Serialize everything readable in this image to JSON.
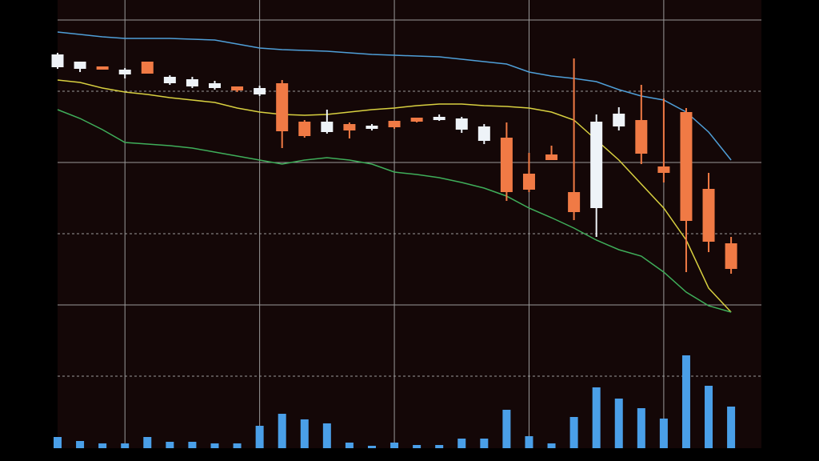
{
  "chart_data": {
    "type": "candlestick",
    "categories": [
      null,
      null,
      null,
      null,
      null,
      null,
      null,
      null,
      null,
      null,
      null,
      null,
      null,
      null,
      null,
      null,
      null,
      null,
      null,
      null,
      null,
      null,
      null,
      null,
      null,
      null,
      null,
      null,
      null,
      null,
      null
    ],
    "open": [
      95.2,
      94.8,
      95.4,
      93.4,
      96.6,
      91.2,
      90.4,
      90,
      90.4,
      88.4,
      91.2,
      81.6,
      79,
      81,
      79.8,
      81.8,
      82.6,
      82,
      79.6,
      76.8,
      77.6,
      68.6,
      73.4,
      64,
      60,
      80.4,
      82,
      70.4,
      84,
      64.8,
      51.2
    ],
    "high": [
      98.8,
      96.6,
      95.4,
      95,
      96.6,
      93.2,
      92.8,
      91.8,
      90.4,
      90.6,
      92,
      82,
      84.6,
      81.4,
      81,
      81.8,
      82.6,
      83.4,
      82.8,
      81,
      81.4,
      73.8,
      75.6,
      97.4,
      83.4,
      85.2,
      90.8,
      87.4,
      85,
      68.8,
      52.8
    ],
    "low": [
      94.8,
      94,
      94.6,
      92.4,
      93.6,
      90.8,
      90,
      89.6,
      89,
      88,
      75,
      77.6,
      78.6,
      77.4,
      79.4,
      79.8,
      81.4,
      81.8,
      78.8,
      76,
      61.8,
      64,
      72,
      57,
      52.8,
      79.4,
      71,
      66.4,
      44,
      49,
      43.6
    ],
    "close": [
      98.4,
      96.6,
      94.6,
      94.6,
      93.6,
      92.8,
      92.2,
      91.2,
      89.4,
      90,
      79.2,
      78,
      81.6,
      79.4,
      80.6,
      80.2,
      81.6,
      82.8,
      82.4,
      80.4,
      64,
      64.6,
      72,
      59,
      81.6,
      83.6,
      73.6,
      68.8,
      56.8,
      51.6,
      44.8
    ],
    "volume": [
      14,
      9,
      6,
      6,
      14,
      8,
      8,
      6,
      6,
      28,
      43,
      36,
      31,
      7,
      3,
      7,
      4,
      4,
      12,
      12,
      48,
      15,
      6,
      39,
      76,
      62,
      50,
      37,
      116,
      78,
      52
    ],
    "series": [
      {
        "color": "#4f9fd8",
        "values": [
          104,
          103.4,
          102.8,
          102.4,
          102.4,
          102.4,
          102.2,
          102,
          101,
          100,
          99.6,
          99.4,
          99.2,
          98.8,
          98.4,
          98.2,
          98,
          97.8,
          97.2,
          96.6,
          96,
          94,
          93,
          92.4,
          91.6,
          89.6,
          88,
          87,
          84,
          79,
          72
        ]
      },
      {
        "color": "#d8d040",
        "values": [
          92,
          91.4,
          90,
          89,
          88.4,
          87.6,
          87,
          86.4,
          85,
          84,
          83.4,
          83.2,
          83.4,
          84,
          84.6,
          85,
          85.6,
          86,
          86,
          85.6,
          85.4,
          85,
          84,
          82,
          77,
          72,
          66,
          60,
          52,
          40,
          34
        ]
      },
      {
        "color": "#3fae5a",
        "values": [
          84.6,
          82.4,
          79.6,
          76.4,
          76,
          75.6,
          75,
          74,
          73,
          72,
          71,
          72,
          72.6,
          72,
          71,
          69,
          68.4,
          67.6,
          66.4,
          65,
          63,
          60,
          57.6,
          55,
          52,
          49.6,
          48,
          44,
          39,
          35.6,
          34
        ]
      }
    ],
    "up_color": "#eef3f8",
    "down_color": "#f07a45",
    "volume_color": "#4a9fe8",
    "ylim": [
      0,
      112
    ],
    "yticks": [
      107,
      89.2,
      71.4,
      53.6,
      35.8,
      18
    ],
    "volume_lim": [
      0,
      140
    ],
    "x_grid_at": [
      3,
      9,
      15,
      21,
      27
    ],
    "grid": true
  }
}
